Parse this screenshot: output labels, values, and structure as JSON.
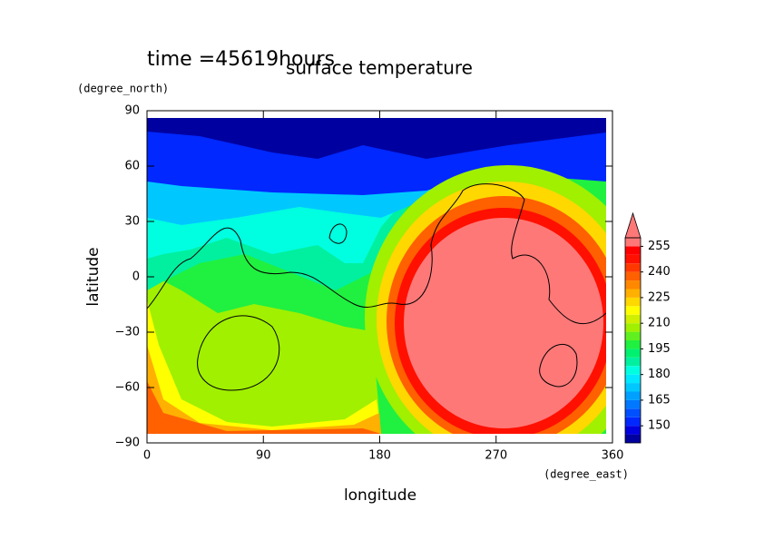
{
  "chart_data": {
    "type": "contour",
    "title": "surface temperature",
    "subtitle": "time =45619hours",
    "x_label": "longitude",
    "x_unit": "(degree_east)",
    "y_label": "latitude",
    "y_unit": "(degree_north)",
    "xlim": [
      0,
      360
    ],
    "xticks": [
      0,
      90,
      180,
      270,
      360
    ],
    "ylim": [
      -90,
      90
    ],
    "yticks": [
      {
        "value": -90,
        "label": "−90"
      },
      {
        "value": -60,
        "label": "−60"
      },
      {
        "value": -30,
        "label": "−30"
      },
      0,
      30,
      60,
      90
    ],
    "levels": [
      140,
      145,
      150,
      155,
      160,
      165,
      170,
      175,
      180,
      185,
      190,
      195,
      200,
      205,
      210,
      215,
      220,
      225,
      230,
      235,
      240,
      245,
      250,
      255,
      260
    ],
    "colors": [
      "#0000a0",
      "#0000e0",
      "#0028ff",
      "#0050ff",
      "#0078ff",
      "#00a0ff",
      "#00c8ff",
      "#00e8ff",
      "#00ffe0",
      "#00f0a0",
      "#00f070",
      "#20f040",
      "#60f020",
      "#a0f000",
      "#d0f000",
      "#ffff00",
      "#ffd800",
      "#ffb000",
      "#ff8800",
      "#ff6000",
      "#ff3800",
      "#ff1000",
      "#ff0000",
      "#ff7878"
    ],
    "colorbar_ticks": [
      150,
      165,
      180,
      195,
      210,
      225,
      240,
      255
    ]
  }
}
